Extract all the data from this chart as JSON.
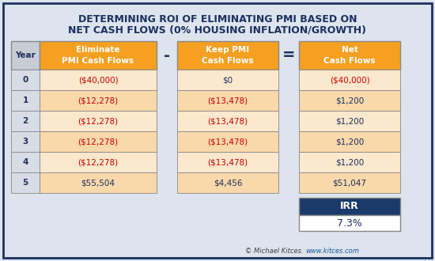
{
  "title_line1": "DETERMINING ROI OF ELIMINATING PMI BASED ON",
  "title_line2": "NET CASH FLOWS (0% HOUSING INFLATION/GROWTH)",
  "title_color": "#1a3060",
  "background_color": "#dde4ed",
  "orange_header": "#f5a020",
  "orange_cell_light": "#fce8cc",
  "orange_cell_dark": "#f9d8aa",
  "blue_header": "#1a3a6b",
  "white_cell": "#ffffff",
  "gray_year_header": "#c8ccd4",
  "gray_year_cell": "#d8dce4",
  "border_color": "#888888",
  "years": [
    "0",
    "1",
    "2",
    "3",
    "4",
    "5"
  ],
  "col1_header": [
    "Eliminate",
    "PMI Cash Flows"
  ],
  "col2_header": [
    "Keep PMI",
    "Cash Flows"
  ],
  "col3_header": [
    "Net",
    "Cash Flows"
  ],
  "col1_values": [
    "($40,000)",
    "($12,278)",
    "($12,278)",
    "($12,278)",
    "($12,278)",
    "$55,504"
  ],
  "col2_values": [
    "$0",
    "($13,478)",
    "($13,478)",
    "($13,478)",
    "($13,478)",
    "$4,456"
  ],
  "col3_values": [
    "($40,000)",
    "$1,200",
    "$1,200",
    "$1,200",
    "$1,200",
    "$51,047"
  ],
  "col1_neg": [
    true,
    true,
    true,
    true,
    true,
    false
  ],
  "col2_neg": [
    false,
    true,
    true,
    true,
    true,
    false
  ],
  "col3_neg": [
    true,
    false,
    false,
    false,
    false,
    false
  ],
  "irr_label": "IRR",
  "irr_value": "7.3%",
  "credit_plain": "© Michael Kitces. ",
  "credit_link": "www.kitces.com",
  "neg_color": "#cc0000",
  "pos_color": "#1a3060",
  "outer_border_color": "#1a3060"
}
